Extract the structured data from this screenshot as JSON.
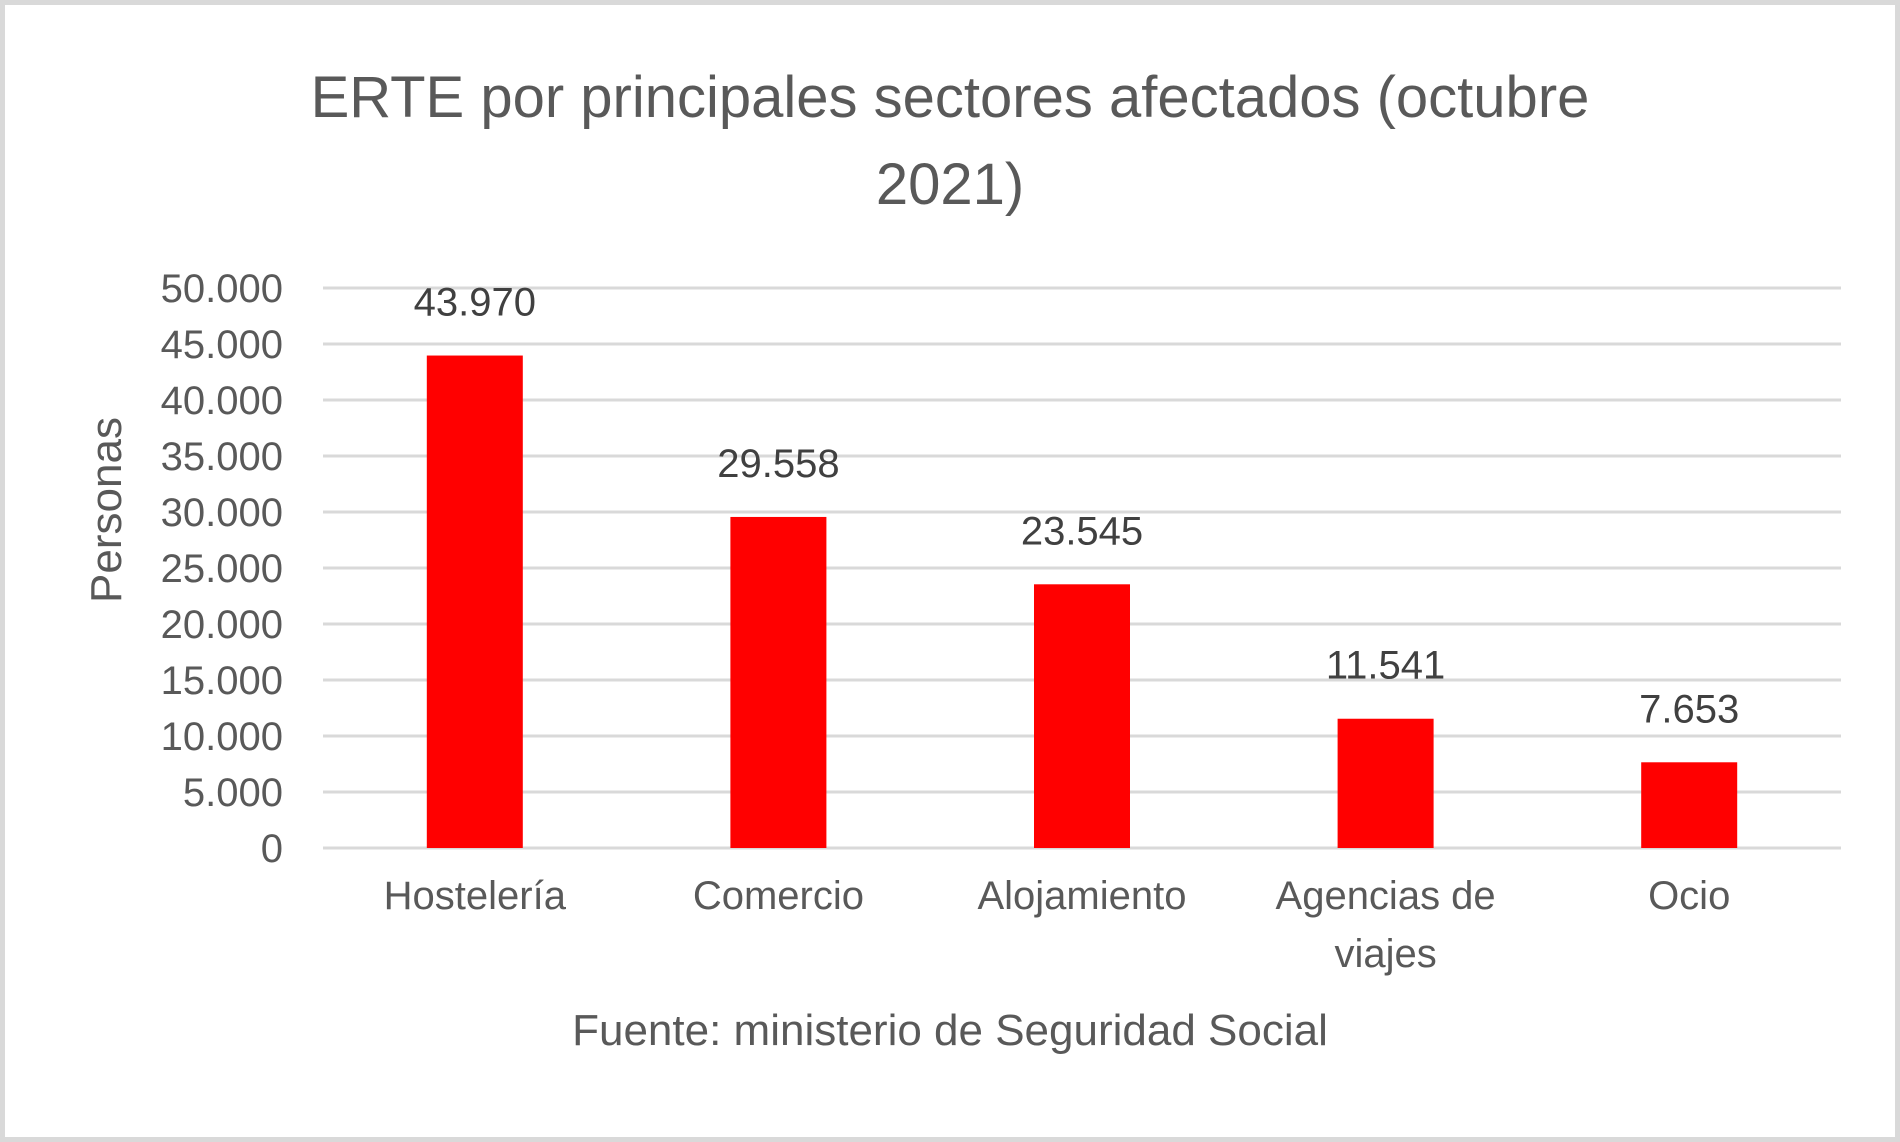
{
  "chart_data": {
    "type": "bar",
    "title_lines": [
      "ERTE por principales sectores afectados (octubre",
      "2021)"
    ],
    "categories": [
      [
        "Hostelería"
      ],
      [
        "Comercio"
      ],
      [
        "Alojamiento"
      ],
      [
        "Agencias de",
        "viajes"
      ],
      [
        "Ocio"
      ]
    ],
    "values": [
      43970,
      29558,
      23545,
      11541,
      7653
    ],
    "data_labels": [
      "43.970",
      "29.558",
      "23.545",
      "11.541",
      "7.653"
    ],
    "ylabel": "Personas",
    "xlabel": "Fuente: ministerio de Seguridad Social",
    "ylim": [
      0,
      50000
    ],
    "yticks": [
      0,
      5000,
      10000,
      15000,
      20000,
      25000,
      30000,
      35000,
      40000,
      45000,
      50000
    ],
    "ytick_labels": [
      "0",
      "5.000",
      "10.000",
      "15.000",
      "20.000",
      "25.000",
      "30.000",
      "35.000",
      "40.000",
      "45.000",
      "50.000"
    ],
    "grid": true,
    "legend": "none",
    "bar_color": "#ff0000"
  }
}
